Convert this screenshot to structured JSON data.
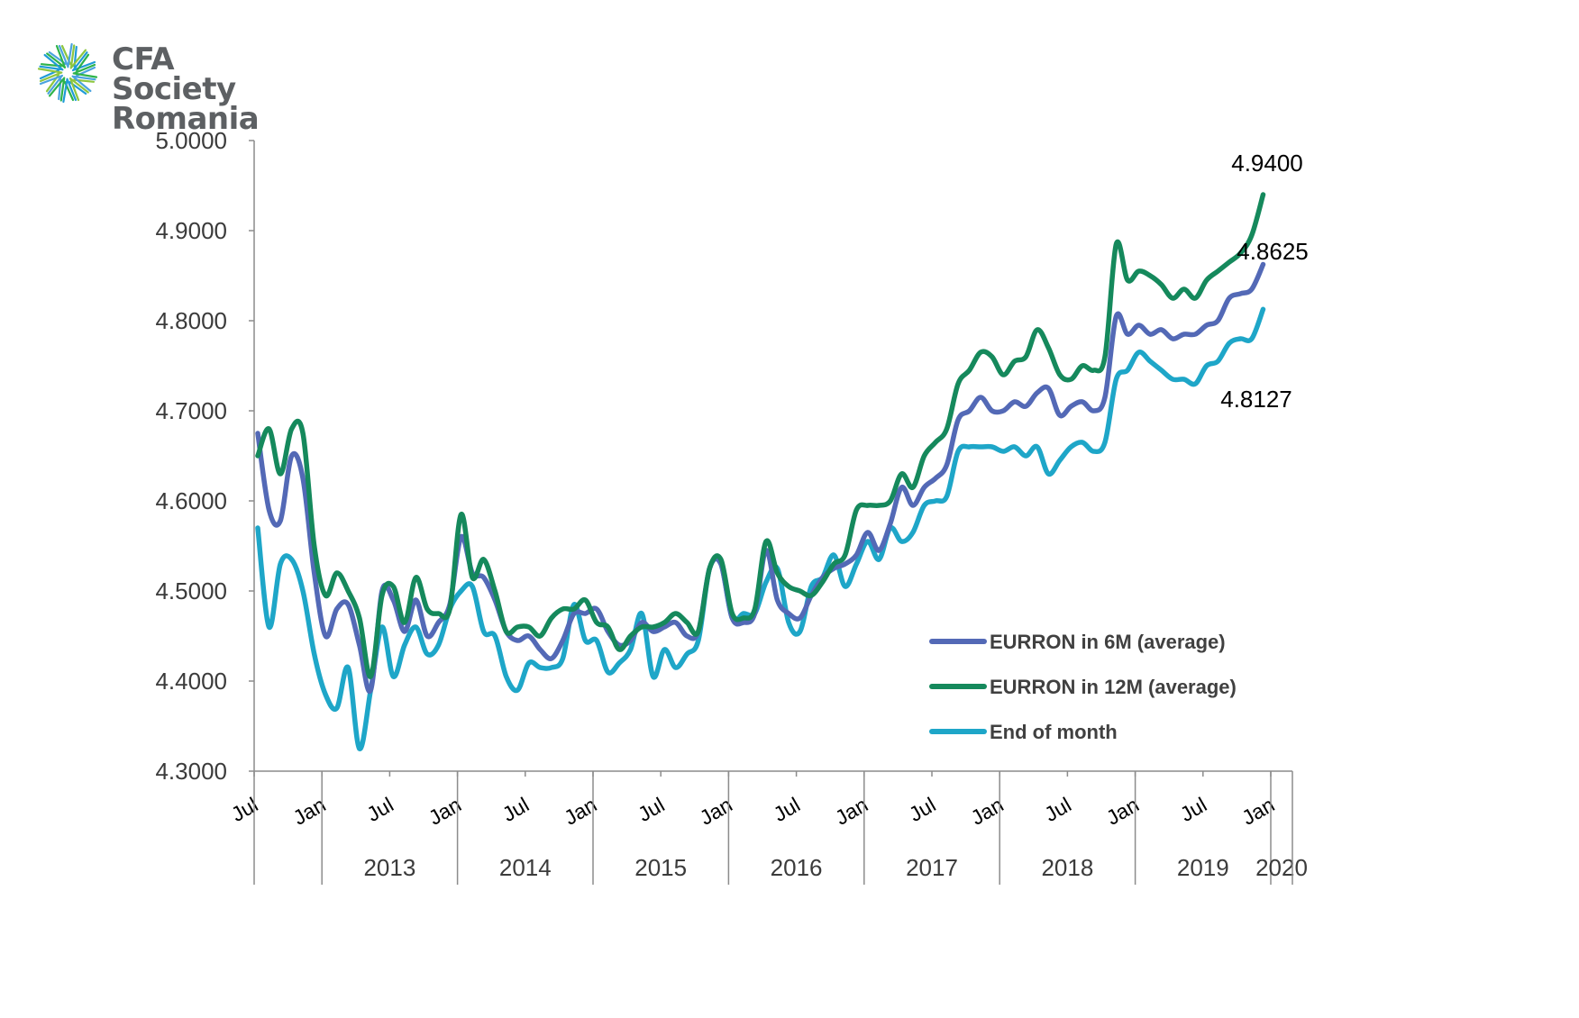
{
  "logo": {
    "line1": "CFA Society",
    "line2": "Romania",
    "colors": [
      "#1f9bd7",
      "#2db34a",
      "#4aa3df",
      "#8dc63f"
    ]
  },
  "chart_data": {
    "type": "line",
    "title": "",
    "xlabel": "",
    "ylabel": "",
    "ylim": [
      4.3,
      5.0
    ],
    "yticks": [
      "4.3000",
      "4.4000",
      "4.5000",
      "4.6000",
      "4.7000",
      "4.8000",
      "4.9000",
      "5.0000"
    ],
    "x_start": "2012-07",
    "x_end": "2020-02",
    "month_ticks": [
      "Jul",
      "Jan",
      "Jul",
      "Jan",
      "Jul",
      "Jan",
      "Jul",
      "Jan",
      "Jul",
      "Jan",
      "Jul",
      "Jan",
      "Jul",
      "Jan",
      "Jul",
      "Jan"
    ],
    "year_labels": [
      "2013",
      "2014",
      "2015",
      "2016",
      "2017",
      "2018",
      "2019",
      "2020"
    ],
    "grid": false,
    "legend_position": "bottom-right",
    "annotations": [
      {
        "text": "4.9400",
        "series": "EURRON in 12M (average)"
      },
      {
        "text": "4.8625",
        "series": "EURRON in 6M (average)"
      },
      {
        "text": "4.8127",
        "series": "End of month"
      }
    ],
    "series": [
      {
        "name": "EURRON in 6M (average)",
        "color": "#5369b6",
        "values": [
          4.675,
          4.59,
          4.578,
          4.65,
          4.625,
          4.52,
          4.45,
          4.48,
          4.485,
          4.44,
          4.39,
          4.5,
          4.49,
          4.455,
          4.49,
          4.45,
          4.465,
          4.485,
          4.56,
          4.52,
          4.515,
          4.49,
          4.455,
          4.445,
          4.45,
          4.435,
          4.425,
          4.445,
          4.475,
          4.475,
          4.48,
          4.455,
          4.44,
          4.445,
          4.465,
          4.455,
          4.46,
          4.465,
          4.45,
          4.455,
          4.525,
          4.53,
          4.47,
          4.465,
          4.475,
          4.545,
          4.49,
          4.475,
          4.47,
          4.495,
          4.515,
          4.525,
          4.53,
          4.54,
          4.565,
          4.545,
          4.575,
          4.615,
          4.595,
          4.615,
          4.625,
          4.64,
          4.69,
          4.7,
          4.715,
          4.7,
          4.7,
          4.71,
          4.705,
          4.72,
          4.725,
          4.695,
          4.705,
          4.71,
          4.7,
          4.715,
          4.805,
          4.785,
          4.795,
          4.785,
          4.79,
          4.78,
          4.785,
          4.785,
          4.795,
          4.8,
          4.825,
          4.83,
          4.835,
          4.8625
        ]
      },
      {
        "name": "EURRON in 12M (average)",
        "color": "#15895c",
        "values": [
          4.65,
          4.68,
          4.63,
          4.68,
          4.675,
          4.55,
          4.495,
          4.52,
          4.5,
          4.47,
          4.405,
          4.495,
          4.505,
          4.465,
          4.515,
          4.48,
          4.475,
          4.48,
          4.585,
          4.515,
          4.535,
          4.5,
          4.455,
          4.46,
          4.46,
          4.45,
          4.47,
          4.48,
          4.48,
          4.49,
          4.465,
          4.46,
          4.435,
          4.45,
          4.46,
          4.46,
          4.465,
          4.475,
          4.465,
          4.455,
          4.525,
          4.535,
          4.475,
          4.47,
          4.48,
          4.555,
          4.52,
          4.505,
          4.5,
          4.495,
          4.51,
          4.53,
          4.54,
          4.59,
          4.595,
          4.595,
          4.6,
          4.63,
          4.615,
          4.65,
          4.665,
          4.68,
          4.73,
          4.745,
          4.765,
          4.76,
          4.74,
          4.755,
          4.76,
          4.79,
          4.77,
          4.74,
          4.735,
          4.75,
          4.745,
          4.76,
          4.885,
          4.845,
          4.855,
          4.85,
          4.84,
          4.825,
          4.835,
          4.825,
          4.845,
          4.855,
          4.865,
          4.875,
          4.895,
          4.94
        ]
      },
      {
        "name": "End of month",
        "color": "#1ea6c8",
        "values": [
          4.57,
          4.46,
          4.53,
          4.535,
          4.5,
          4.43,
          4.385,
          4.37,
          4.415,
          4.325,
          4.39,
          4.46,
          4.405,
          4.44,
          4.46,
          4.43,
          4.44,
          4.48,
          4.5,
          4.505,
          4.455,
          4.45,
          4.405,
          4.39,
          4.42,
          4.415,
          4.415,
          4.425,
          4.485,
          4.445,
          4.445,
          4.41,
          4.42,
          4.435,
          4.475,
          4.405,
          4.435,
          4.415,
          4.43,
          4.445,
          4.525,
          4.53,
          4.47,
          4.475,
          4.475,
          4.51,
          4.525,
          4.465,
          4.455,
          4.505,
          4.515,
          4.54,
          4.505,
          4.53,
          4.555,
          4.535,
          4.57,
          4.555,
          4.565,
          4.595,
          4.6,
          4.605,
          4.655,
          4.66,
          4.66,
          4.66,
          4.655,
          4.66,
          4.65,
          4.66,
          4.63,
          4.645,
          4.66,
          4.665,
          4.655,
          4.665,
          4.735,
          4.745,
          4.765,
          4.755,
          4.745,
          4.735,
          4.735,
          4.73,
          4.75,
          4.755,
          4.775,
          4.78,
          4.78,
          4.8127
        ]
      }
    ]
  }
}
